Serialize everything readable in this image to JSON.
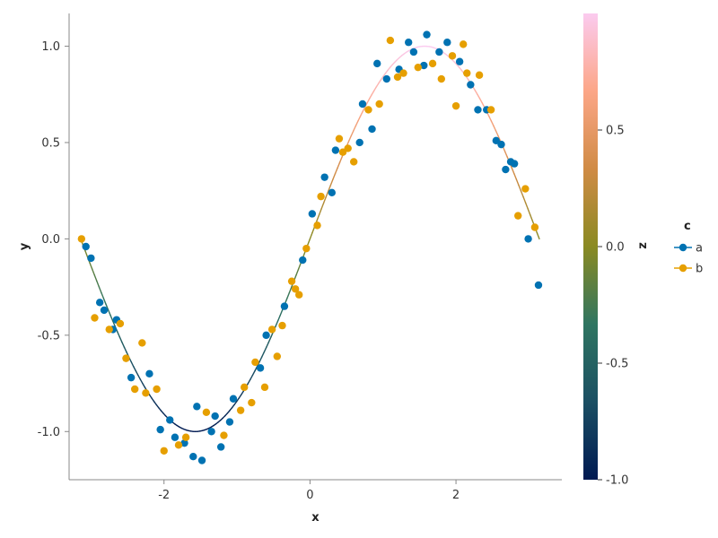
{
  "chart_data": {
    "type": "scatter",
    "title": "",
    "xlabel": "x",
    "ylabel": "y",
    "xlim": [
      -3.3,
      3.45
    ],
    "ylim": [
      -1.25,
      1.17
    ],
    "xticks": [
      -2,
      0,
      2
    ],
    "yticks": [
      -1.0,
      -0.5,
      0.0,
      0.5,
      1.0
    ],
    "xtick_labels": [
      "-2",
      "0",
      "2"
    ],
    "ytick_labels": [
      "-1.0",
      "-0.5",
      "0.0",
      "0.5",
      "1.0"
    ],
    "grid": false,
    "line": {
      "name": "",
      "x_range": [
        -3.1416,
        3.1416
      ],
      "function": "sin",
      "color_by": "z",
      "z_equals": "sin(x)"
    },
    "series": [
      {
        "name": "a",
        "color": "#0072b2",
        "points": [
          [
            -3.07,
            -0.04
          ],
          [
            -3.0,
            -0.1
          ],
          [
            -2.88,
            -0.33
          ],
          [
            -2.82,
            -0.37
          ],
          [
            -2.7,
            -0.47
          ],
          [
            -2.65,
            -0.42
          ],
          [
            -2.45,
            -0.72
          ],
          [
            -2.2,
            -0.7
          ],
          [
            -2.05,
            -0.99
          ],
          [
            -1.92,
            -0.94
          ],
          [
            -1.85,
            -1.03
          ],
          [
            -1.72,
            -1.06
          ],
          [
            -1.6,
            -1.13
          ],
          [
            -1.55,
            -0.87
          ],
          [
            -1.48,
            -1.15
          ],
          [
            -1.35,
            -1.0
          ],
          [
            -1.3,
            -0.92
          ],
          [
            -1.22,
            -1.08
          ],
          [
            -1.1,
            -0.95
          ],
          [
            -1.05,
            -0.83
          ],
          [
            -0.68,
            -0.67
          ],
          [
            -0.6,
            -0.5
          ],
          [
            -0.35,
            -0.35
          ],
          [
            -0.1,
            -0.11
          ],
          [
            0.03,
            0.13
          ],
          [
            0.2,
            0.32
          ],
          [
            0.3,
            0.24
          ],
          [
            0.35,
            0.46
          ],
          [
            0.68,
            0.5
          ],
          [
            0.72,
            0.7
          ],
          [
            0.85,
            0.57
          ],
          [
            0.92,
            0.91
          ],
          [
            1.05,
            0.83
          ],
          [
            1.22,
            0.88
          ],
          [
            1.35,
            1.02
          ],
          [
            1.42,
            0.97
          ],
          [
            1.56,
            0.9
          ],
          [
            1.6,
            1.06
          ],
          [
            1.77,
            0.97
          ],
          [
            1.88,
            1.02
          ],
          [
            2.05,
            0.92
          ],
          [
            2.2,
            0.8
          ],
          [
            2.3,
            0.67
          ],
          [
            2.42,
            0.67
          ],
          [
            2.55,
            0.51
          ],
          [
            2.62,
            0.49
          ],
          [
            2.68,
            0.36
          ],
          [
            2.75,
            0.4
          ],
          [
            2.8,
            0.39
          ],
          [
            2.99,
            0.0
          ],
          [
            3.13,
            -0.24
          ]
        ]
      },
      {
        "name": "b",
        "color": "#e69f00",
        "points": [
          [
            -3.13,
            0.0
          ],
          [
            -2.95,
            -0.41
          ],
          [
            -2.75,
            -0.47
          ],
          [
            -2.6,
            -0.44
          ],
          [
            -2.52,
            -0.62
          ],
          [
            -2.4,
            -0.78
          ],
          [
            -2.3,
            -0.54
          ],
          [
            -2.25,
            -0.8
          ],
          [
            -2.1,
            -0.78
          ],
          [
            -2.0,
            -1.1
          ],
          [
            -1.8,
            -1.07
          ],
          [
            -1.7,
            -1.03
          ],
          [
            -1.42,
            -0.9
          ],
          [
            -1.18,
            -1.02
          ],
          [
            -0.95,
            -0.89
          ],
          [
            -0.9,
            -0.77
          ],
          [
            -0.8,
            -0.85
          ],
          [
            -0.75,
            -0.64
          ],
          [
            -0.62,
            -0.77
          ],
          [
            -0.52,
            -0.47
          ],
          [
            -0.45,
            -0.61
          ],
          [
            -0.38,
            -0.45
          ],
          [
            -0.25,
            -0.22
          ],
          [
            -0.2,
            -0.26
          ],
          [
            -0.15,
            -0.29
          ],
          [
            -0.05,
            -0.05
          ],
          [
            0.1,
            0.07
          ],
          [
            0.15,
            0.22
          ],
          [
            0.4,
            0.52
          ],
          [
            0.45,
            0.45
          ],
          [
            0.52,
            0.47
          ],
          [
            0.6,
            0.4
          ],
          [
            0.8,
            0.67
          ],
          [
            0.95,
            0.7
          ],
          [
            1.1,
            1.03
          ],
          [
            1.2,
            0.84
          ],
          [
            1.28,
            0.86
          ],
          [
            1.48,
            0.89
          ],
          [
            1.68,
            0.91
          ],
          [
            1.8,
            0.83
          ],
          [
            1.95,
            0.95
          ],
          [
            2.0,
            0.69
          ],
          [
            2.1,
            1.01
          ],
          [
            2.15,
            0.86
          ],
          [
            2.32,
            0.85
          ],
          [
            2.48,
            0.67
          ],
          [
            2.85,
            0.12
          ],
          [
            2.95,
            0.26
          ],
          [
            3.08,
            0.06
          ]
        ]
      }
    ],
    "colorbar": {
      "label": "z",
      "range": [
        -1.0,
        1.0
      ],
      "ticks": [
        -1.0,
        -0.5,
        0.0,
        0.5
      ],
      "tick_labels": [
        "-1.0",
        "-0.5",
        "0.0",
        "0.5"
      ],
      "colormap": [
        "#001a52",
        "#1b4f63",
        "#2f7561",
        "#8a8a22",
        "#d08b45",
        "#fca687",
        "#fbcbef"
      ]
    },
    "legend": {
      "title": "c",
      "placement": "right",
      "items": [
        "a",
        "b"
      ]
    }
  }
}
